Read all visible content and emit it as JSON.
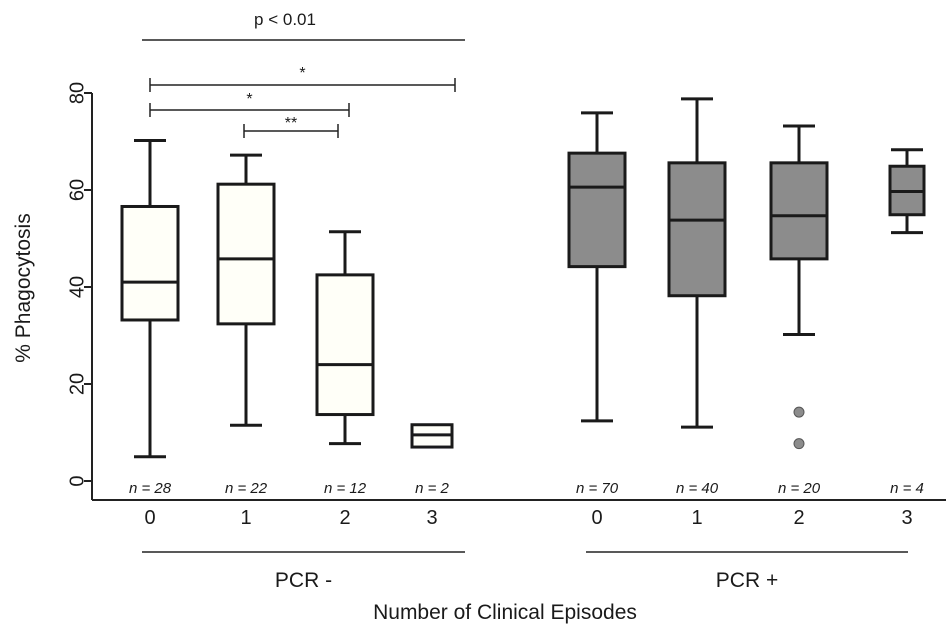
{
  "chart_data": {
    "type": "box",
    "ylabel": "% Phagocytosis",
    "xlabel": "Number of Clinical Episodes",
    "ylim": [
      0,
      80
    ],
    "yticks": [
      0,
      20,
      40,
      60,
      80
    ],
    "groups": [
      {
        "label": "PCR -",
        "fill": "#fffff8",
        "boxes": [
          {
            "episodes": "0",
            "n_label": "n = 28",
            "min": 5,
            "q1": 33.2,
            "median": 41,
            "q3": 56.6,
            "max": 70.2,
            "outliers": []
          },
          {
            "episodes": "1",
            "n_label": "n = 22",
            "min": 11.5,
            "q1": 32.4,
            "median": 45.8,
            "q3": 61.2,
            "max": 67.2,
            "outliers": []
          },
          {
            "episodes": "2",
            "n_label": "n = 12",
            "min": 7.7,
            "q1": 13.7,
            "median": 24,
            "q3": 42.5,
            "max": 51.4,
            "outliers": []
          },
          {
            "episodes": "3",
            "n_label": "n = 2",
            "min": 7,
            "q1": 7,
            "median": 9.5,
            "q3": 11.6,
            "max": 11.6,
            "outliers": []
          }
        ]
      },
      {
        "label": "PCR +",
        "fill": "#8c8c8c",
        "boxes": [
          {
            "episodes": "0",
            "n_label": "n = 70",
            "min": 12.4,
            "q1": 44.2,
            "median": 60.6,
            "q3": 67.6,
            "max": 75.9,
            "outliers": []
          },
          {
            "episodes": "1",
            "n_label": "n = 40",
            "min": 11.1,
            "q1": 38.2,
            "median": 53.8,
            "q3": 65.6,
            "max": 78.8,
            "outliers": []
          },
          {
            "episodes": "2",
            "n_label": "n = 20",
            "min": 30.2,
            "q1": 45.8,
            "median": 54.7,
            "q3": 65.6,
            "max": 73.2,
            "outliers": [
              14.2,
              7.7
            ]
          },
          {
            "episodes": "3",
            "n_label": "n = 4",
            "min": 51.2,
            "q1": 54.9,
            "median": 59.7,
            "q3": 64.9,
            "max": 68.3,
            "outliers": []
          }
        ]
      }
    ],
    "annotations": [
      {
        "text": "p < 0.01",
        "from": [
          0,
          0
        ],
        "to": [
          0,
          3
        ]
      },
      {
        "text": "*",
        "from": [
          0,
          0
        ],
        "to": [
          0,
          3
        ]
      },
      {
        "text": "*",
        "from": [
          0,
          0
        ],
        "to": [
          0,
          2
        ]
      },
      {
        "text": "**",
        "from": [
          0,
          1
        ],
        "to": [
          0,
          2
        ]
      }
    ]
  }
}
